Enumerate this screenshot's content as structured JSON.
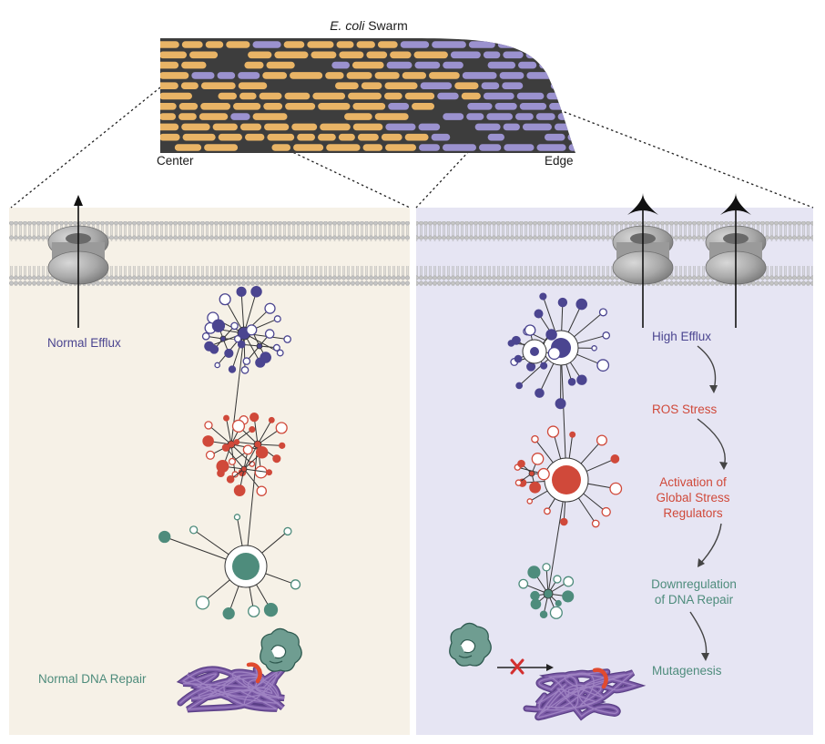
{
  "swarm": {
    "title_italic": "E. coli",
    "title_rest": " Swarm",
    "center_label": "Center",
    "edge_label": "Edge"
  },
  "left_panel": {
    "efflux_label": "Normal Efflux",
    "repair_label": "Normal DNA Repair"
  },
  "right_panel": {
    "pathway": [
      {
        "lines": [
          "High Efflux"
        ],
        "color": "#4b4590"
      },
      {
        "lines": [
          "ROS Stress"
        ],
        "color": "#d0493a"
      },
      {
        "lines": [
          "Activation of",
          "Global Stress",
          "Regulators"
        ],
        "color": "#d0493a"
      },
      {
        "lines": [
          "Downregulation",
          "of DNA Repair"
        ],
        "color": "#4e8c7c"
      },
      {
        "lines": [
          "Mutagenesis"
        ],
        "color": "#4e8c7c"
      }
    ]
  },
  "colors": {
    "cell_orange": "#e9b466",
    "cell_purple": "#9b92cf",
    "swarm_bg": "#3d3d3d",
    "left_bg": "#f6f1e7",
    "right_bg": "#e6e5f3",
    "network_purple": "#4b4590",
    "network_red": "#d0493a",
    "network_teal": "#4e8c7c",
    "dna": "#7b5aa6"
  },
  "icons": [
    "efflux-pump-icon",
    "dna-repair-enzyme-icon",
    "dna-coil-icon",
    "blocked-x-icon"
  ]
}
